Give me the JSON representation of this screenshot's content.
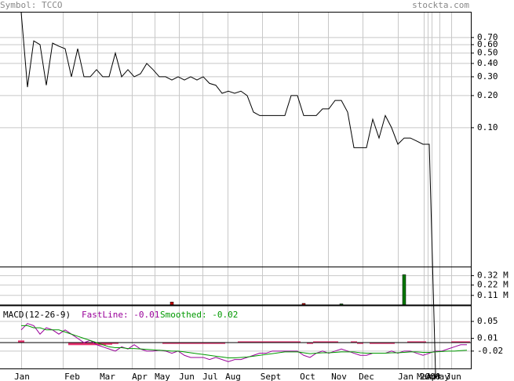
{
  "header": {
    "symbol": "Symbol: TCCO",
    "site": "stockta.com"
  },
  "chart_data": [
    {
      "type": "line",
      "log_scale": true,
      "color": "#000000",
      "x_labels": [
        "Jan",
        "Feb",
        "Mar",
        "Apr",
        "May",
        "Jun",
        "Jul",
        "Aug",
        "Sept",
        "Oct",
        "Nov",
        "Dec",
        "Jan",
        "2000",
        "Mar",
        "Apr",
        "May",
        "Jun"
      ],
      "ylim": [
        0.005,
        1.22
      ],
      "yticks": [
        {
          "value": 0.7,
          "label": "0.70"
        },
        {
          "value": 0.6,
          "label": "0.60"
        },
        {
          "value": 0.5,
          "label": "0.50"
        },
        {
          "value": 0.4,
          "label": "0.40"
        },
        {
          "value": 0.3,
          "label": "0.30"
        },
        {
          "value": 0.2,
          "label": "0.20"
        },
        {
          "value": 0.1,
          "label": "0.10"
        }
      ],
      "values": [
        1.2,
        0.24,
        0.65,
        0.6,
        0.25,
        0.62,
        0.58,
        0.55,
        0.3,
        0.55,
        0.3,
        0.3,
        0.35,
        0.3,
        0.3,
        0.5,
        0.3,
        0.35,
        0.3,
        0.32,
        0.4,
        0.35,
        0.3,
        0.3,
        0.28,
        0.3,
        0.28,
        0.3,
        0.28,
        0.3,
        0.26,
        0.25,
        0.21,
        0.22,
        0.21,
        0.22,
        0.2,
        0.14,
        0.13,
        0.13,
        0.13,
        0.13,
        0.13,
        0.2,
        0.2,
        0.13,
        0.13,
        0.13,
        0.15,
        0.15,
        0.18,
        0.18,
        0.14,
        0.065,
        0.065,
        0.065,
        0.12,
        0.08,
        0.13,
        0.1,
        0.07,
        0.08,
        0.08,
        0.075,
        0.07,
        0.07,
        0.0005,
        null,
        null,
        null,
        null,
        null
      ]
    },
    {
      "type": "volume",
      "ylim": [
        0,
        417000
      ],
      "yticks": [
        {
          "value": 320000,
          "label": "0.32 M"
        },
        {
          "value": 220000,
          "label": "0.22 M"
        },
        {
          "value": 110000,
          "label": "0.11 M"
        }
      ],
      "series": [
        {
          "color": "#cc0000",
          "values": [
            null,
            null,
            null,
            null,
            null,
            null,
            null,
            null,
            null,
            null,
            null,
            null,
            null,
            null,
            null,
            null,
            null,
            null,
            null,
            null,
            null,
            null,
            null,
            null,
            40000,
            null,
            null,
            null,
            null,
            null,
            null,
            null,
            null,
            null,
            null,
            null,
            null,
            null,
            null,
            null,
            null,
            null,
            null,
            null,
            null,
            25000,
            null,
            null,
            null,
            null,
            null,
            null,
            null,
            null,
            null,
            null,
            null,
            null,
            null,
            null,
            null,
            null,
            null,
            null,
            null,
            null,
            null,
            null,
            null,
            null,
            null,
            null
          ]
        },
        {
          "color": "#007700",
          "values": [
            null,
            null,
            null,
            null,
            null,
            null,
            null,
            null,
            null,
            null,
            null,
            null,
            null,
            null,
            null,
            null,
            null,
            null,
            null,
            null,
            null,
            null,
            null,
            null,
            null,
            null,
            null,
            null,
            null,
            null,
            null,
            null,
            null,
            null,
            null,
            null,
            null,
            null,
            null,
            null,
            null,
            null,
            null,
            null,
            null,
            null,
            null,
            null,
            null,
            null,
            null,
            20000,
            null,
            null,
            null,
            null,
            null,
            null,
            10000,
            null,
            null,
            330000,
            null,
            null,
            null,
            null,
            null,
            null,
            null,
            null,
            null,
            null
          ]
        }
      ]
    },
    {
      "type": "macd",
      "title": "MACD(12-26-9)",
      "ylim": [
        -0.061,
        0.087
      ],
      "yticks": [
        0.05,
        0.01,
        -0.02
      ],
      "histogram": {
        "color": "#e8336f",
        "values": [
          0.005,
          0,
          0,
          0,
          0,
          0,
          0,
          0,
          -0.006,
          -0.006,
          -0.006,
          -0.006,
          -0.006,
          -0.006,
          -0.005,
          -0.003,
          0,
          0,
          0,
          0,
          0,
          0,
          0,
          -0.003,
          -0.003,
          -0.003,
          -0.003,
          -0.003,
          -0.003,
          -0.003,
          -0.003,
          -0.003,
          -0.003,
          0,
          0,
          0.003,
          0.003,
          0.003,
          0.003,
          0.003,
          0.003,
          0.003,
          0.003,
          0.003,
          0.003,
          0,
          -0.003,
          0.003,
          0.003,
          0.003,
          0.003,
          0,
          0,
          0.003,
          -0.003,
          0,
          -0.003,
          -0.003,
          -0.003,
          -0.003,
          0,
          0,
          0.003,
          0.003,
          0.003,
          0,
          0,
          0,
          0,
          0.003,
          0.003,
          0.003
        ]
      },
      "series": [
        {
          "name": "FastLine: -0.01",
          "color": "#990099",
          "values": [
            0.03,
            0.045,
            0.04,
            0.02,
            0.035,
            0.03,
            0.02,
            0.03,
            0.02,
            0.01,
            0.0,
            0.005,
            -0.005,
            -0.01,
            -0.015,
            -0.02,
            -0.01,
            -0.015,
            -0.005,
            -0.015,
            -0.02,
            -0.02,
            -0.018,
            -0.02,
            -0.025,
            -0.02,
            -0.03,
            -0.035,
            -0.035,
            -0.035,
            -0.04,
            -0.035,
            -0.04,
            -0.045,
            -0.04,
            -0.04,
            -0.035,
            -0.03,
            -0.025,
            -0.025,
            -0.02,
            -0.02,
            -0.02,
            -0.02,
            -0.02,
            -0.03,
            -0.035,
            -0.025,
            -0.02,
            -0.025,
            -0.02,
            -0.015,
            -0.02,
            -0.025,
            -0.03,
            -0.03,
            -0.025,
            -0.025,
            -0.025,
            -0.02,
            -0.025,
            -0.02,
            -0.02,
            -0.025,
            -0.03,
            -0.025,
            -0.02,
            -0.02,
            -0.015,
            -0.01,
            -0.005,
            -0.005
          ]
        },
        {
          "name": "Smoothed: -0.02",
          "color": "#009900",
          "values": [
            0.04,
            0.04,
            0.035,
            0.035,
            0.03,
            0.03,
            0.03,
            0.025,
            0.02,
            0.015,
            0.01,
            0.005,
            0.0,
            -0.005,
            -0.01,
            -0.012,
            -0.012,
            -0.014,
            -0.014,
            -0.015,
            -0.016,
            -0.017,
            -0.018,
            -0.019,
            -0.02,
            -0.02,
            -0.022,
            -0.024,
            -0.026,
            -0.028,
            -0.03,
            -0.032,
            -0.034,
            -0.036,
            -0.036,
            -0.035,
            -0.034,
            -0.032,
            -0.03,
            -0.028,
            -0.026,
            -0.024,
            -0.022,
            -0.022,
            -0.022,
            -0.024,
            -0.026,
            -0.025,
            -0.024,
            -0.024,
            -0.023,
            -0.022,
            -0.022,
            -0.022,
            -0.024,
            -0.025,
            -0.025,
            -0.025,
            -0.025,
            -0.024,
            -0.024,
            -0.023,
            -0.022,
            -0.022,
            -0.023,
            -0.023,
            -0.022,
            -0.021,
            -0.02,
            -0.02,
            -0.019,
            -0.018
          ]
        }
      ]
    }
  ]
}
